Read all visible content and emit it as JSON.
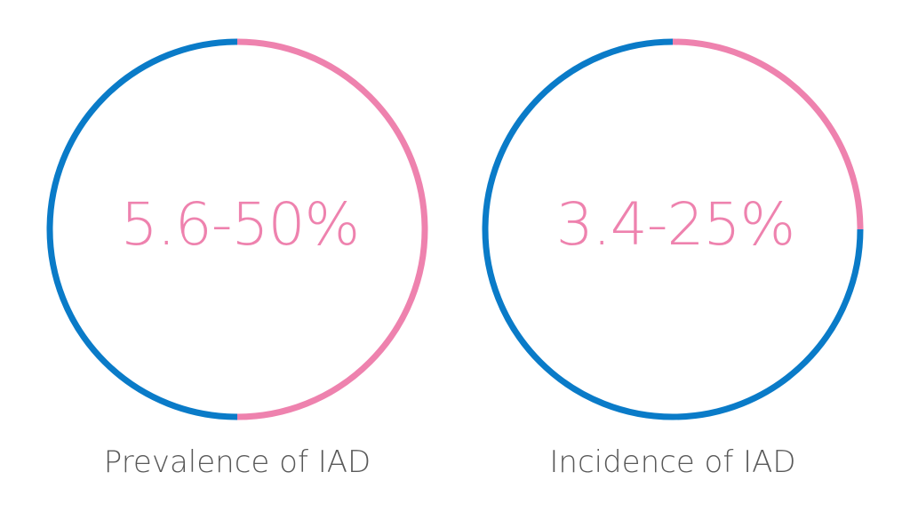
{
  "chart_data": [
    {
      "type": "pie",
      "value_label": "5.6-50%",
      "caption": "Prevalence of IAD",
      "slices": [
        {
          "share": 0.5,
          "color": "#EE82AE"
        },
        {
          "share": 0.5,
          "color": "#0A7BC8"
        }
      ]
    },
    {
      "type": "pie",
      "value_label": "3.4-25%",
      "caption": "Incidence of IAD",
      "slices": [
        {
          "share": 0.25,
          "color": "#EE82AE"
        },
        {
          "share": 0.75,
          "color": "#0A7BC8"
        }
      ]
    }
  ],
  "colors": {
    "value_text": "#EE82AE",
    "caption_text": "#595959"
  }
}
